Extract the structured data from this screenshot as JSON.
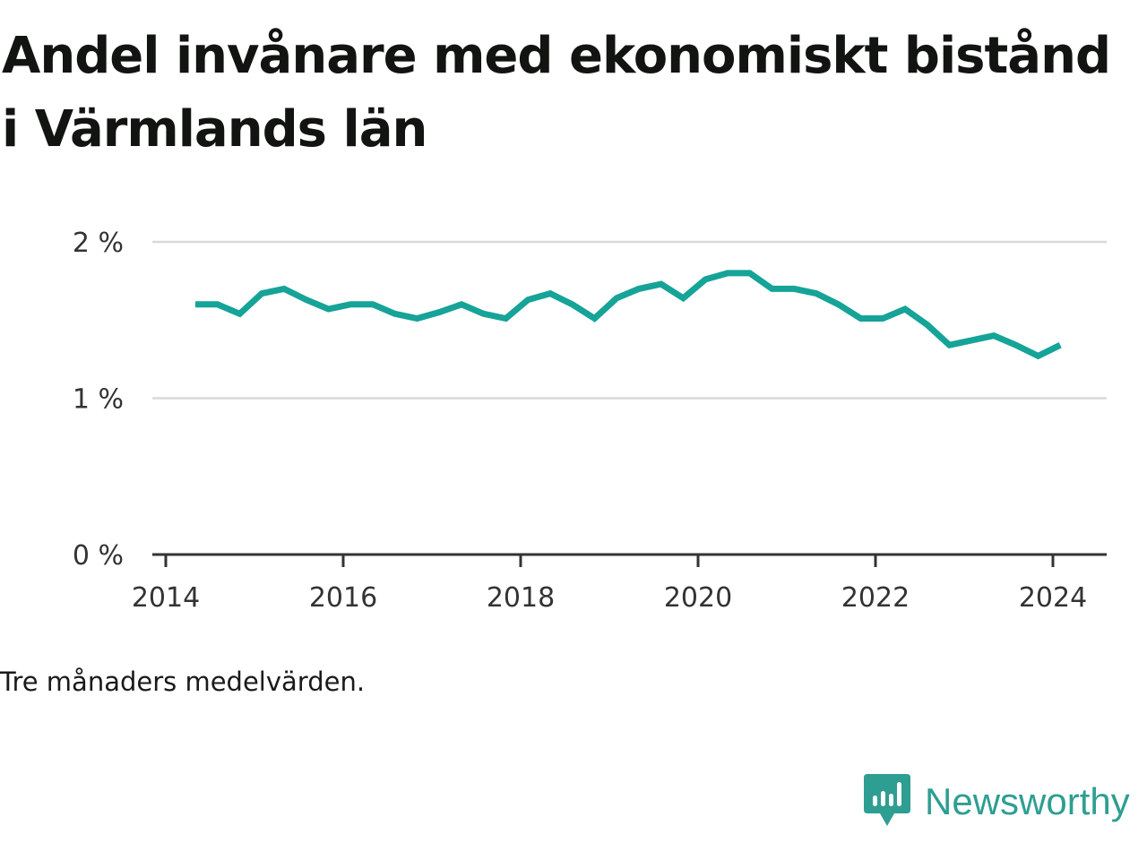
{
  "title": "Andel invånare med ekonomiskt bistånd i Värmlands län",
  "note": "Tre månaders medelvärden.",
  "brand": {
    "name": "Newsworthy",
    "color": "#2e9e92"
  },
  "chart_data": {
    "type": "line",
    "title": "Andel invånare med ekonomiskt bistånd i Värmlands län",
    "xlabel": "",
    "ylabel": "",
    "x_ticks": [
      "2014",
      "2016",
      "2018",
      "2020",
      "2022",
      "2024"
    ],
    "y_ticks": [
      "0 %",
      "1 %",
      "2 %"
    ],
    "xlim": [
      "2014-01",
      "2024-12"
    ],
    "ylim": [
      0,
      2
    ],
    "grid": true,
    "legend": "none",
    "line_color": "#16a398",
    "series": [
      {
        "x": [
          "2014-05",
          "2014-08",
          "2014-11",
          "2015-02",
          "2015-05",
          "2015-08",
          "2015-11",
          "2016-02",
          "2016-05",
          "2016-08",
          "2016-11",
          "2017-02",
          "2017-05",
          "2017-08",
          "2017-11",
          "2018-02",
          "2018-05",
          "2018-08",
          "2018-11",
          "2019-02",
          "2019-05",
          "2019-08",
          "2019-11",
          "2020-02",
          "2020-05",
          "2020-08",
          "2020-11",
          "2021-02",
          "2021-05",
          "2021-08",
          "2021-11",
          "2022-02",
          "2022-05",
          "2022-08",
          "2022-11",
          "2023-02",
          "2023-05",
          "2023-08",
          "2023-11",
          "2024-02"
        ],
        "y": [
          1.6,
          1.6,
          1.54,
          1.67,
          1.7,
          1.63,
          1.57,
          1.6,
          1.6,
          1.54,
          1.51,
          1.55,
          1.6,
          1.54,
          1.51,
          1.63,
          1.67,
          1.6,
          1.51,
          1.64,
          1.7,
          1.73,
          1.64,
          1.76,
          1.8,
          1.8,
          1.7,
          1.7,
          1.67,
          1.6,
          1.51,
          1.51,
          1.57,
          1.47,
          1.34,
          1.37,
          1.4,
          1.34,
          1.27,
          1.34
        ]
      }
    ]
  }
}
